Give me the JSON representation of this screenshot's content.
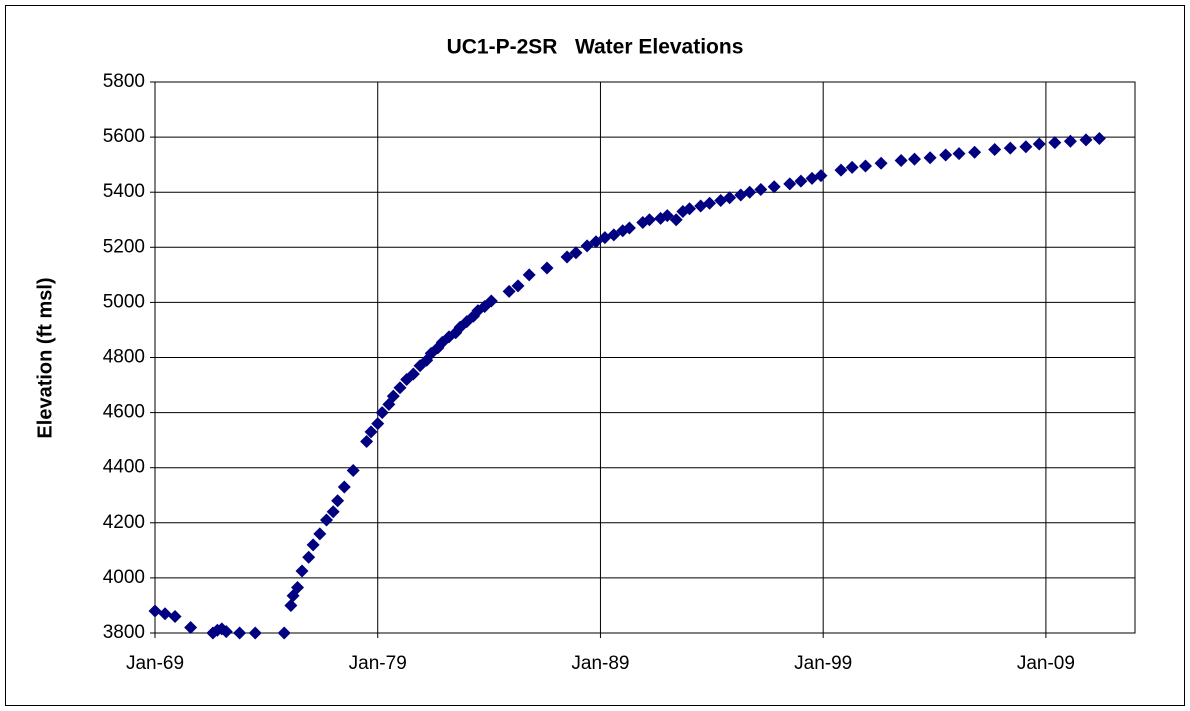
{
  "chart_data": {
    "type": "scatter",
    "title": "UC1-P-2SR   Water Elevations",
    "y_label": "Elevation (ft msl)",
    "color": "#000080",
    "grid": true,
    "xlim": [
      1969,
      2013
    ],
    "xticks": [
      {
        "value": 1969,
        "label": "Jan-69"
      },
      {
        "value": 1979,
        "label": "Jan-79"
      },
      {
        "value": 1989,
        "label": "Jan-89"
      },
      {
        "value": 1999,
        "label": "Jan-99"
      },
      {
        "value": 2009,
        "label": "Jan-09"
      }
    ],
    "ylim": [
      3800,
      5800
    ],
    "yticks": [
      3800,
      4000,
      4200,
      4400,
      4600,
      4800,
      5000,
      5200,
      5400,
      5600,
      5800
    ],
    "x": [
      1969.0,
      1969.45,
      1969.9,
      1970.6,
      1971.6,
      1971.8,
      1972.0,
      1972.2,
      1972.8,
      1973.5,
      1974.8,
      1975.1,
      1975.2,
      1975.4,
      1975.6,
      1975.9,
      1976.1,
      1976.4,
      1976.7,
      1977.0,
      1977.2,
      1977.5,
      1977.9,
      1978.5,
      1978.7,
      1979.0,
      1979.2,
      1979.5,
      1979.7,
      1980.0,
      1980.3,
      1980.6,
      1980.9,
      1981.2,
      1981.4,
      1981.7,
      1981.9,
      1982.2,
      1982.5,
      1982.7,
      1983.0,
      1983.3,
      1983.5,
      1983.8,
      1984.1,
      1984.9,
      1985.3,
      1985.8,
      1986.6,
      1987.5,
      1987.9,
      1988.4,
      1988.8,
      1989.2,
      1989.6,
      1990.0,
      1990.3,
      1990.9,
      1991.2,
      1991.7,
      1992.0,
      1992.4,
      1992.7,
      1993.0,
      1993.5,
      1993.9,
      1994.4,
      1994.8,
      1995.3,
      1995.7,
      1996.2,
      1996.8,
      1997.5,
      1998.0,
      1998.5,
      1998.9,
      1999.8,
      2000.3,
      2000.9,
      2001.6,
      2002.5,
      2003.1,
      2003.8,
      2004.5,
      2005.1,
      2005.8,
      2006.7,
      2007.4,
      2008.1,
      2008.7,
      2009.4,
      2010.1,
      2010.8,
      2011.4
    ],
    "values": [
      3880,
      3870,
      3860,
      3820,
      3800,
      3810,
      3815,
      3805,
      3800,
      3800,
      3800,
      3900,
      3935,
      3965,
      4025,
      4075,
      4120,
      4160,
      4210,
      4240,
      4280,
      4330,
      4390,
      4495,
      4530,
      4560,
      4600,
      4630,
      4660,
      4690,
      4720,
      4740,
      4770,
      4790,
      4815,
      4835,
      4855,
      4875,
      4890,
      4910,
      4930,
      4950,
      4970,
      4985,
      5005,
      5040,
      5060,
      5100,
      5125,
      5165,
      5180,
      5205,
      5220,
      5235,
      5245,
      5260,
      5270,
      5290,
      5300,
      5305,
      5315,
      5300,
      5330,
      5340,
      5350,
      5360,
      5370,
      5380,
      5390,
      5400,
      5410,
      5420,
      5430,
      5440,
      5450,
      5460,
      5480,
      5490,
      5495,
      5505,
      5515,
      5520,
      5525,
      5535,
      5540,
      5545,
      5555,
      5560,
      5565,
      5575,
      5580,
      5585,
      5590,
      5595
    ]
  }
}
